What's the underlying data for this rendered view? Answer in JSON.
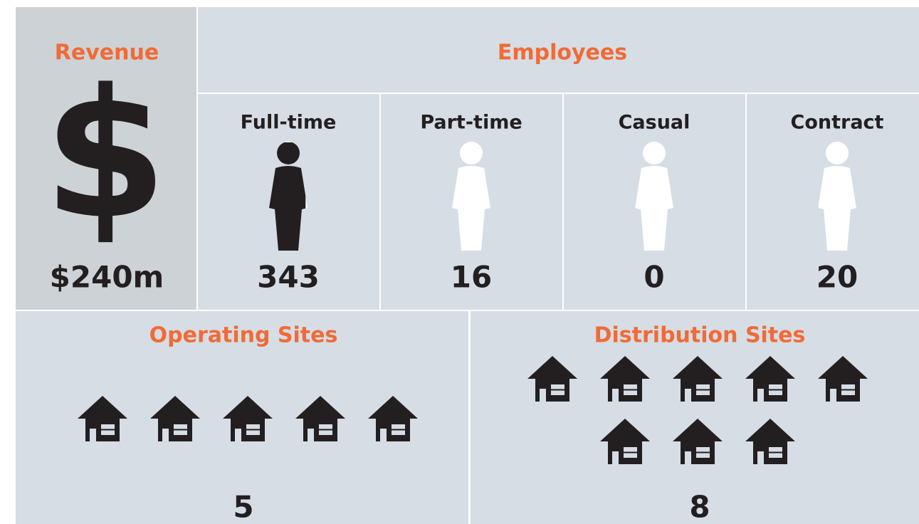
{
  "revenue": {
    "title": "Revenue",
    "symbol": "$",
    "value": "$240m"
  },
  "employees": {
    "title": "Employees",
    "groups": [
      {
        "label": "Full-time",
        "value": 343
      },
      {
        "label": "Part-time",
        "value": 16
      },
      {
        "label": "Casual",
        "value": 0
      },
      {
        "label": "Contract",
        "value": 20
      }
    ]
  },
  "operating_sites": {
    "title": "Operating Sites",
    "value": 5
  },
  "distribution_sites": {
    "title": "Distribution Sites",
    "value": 8
  }
}
